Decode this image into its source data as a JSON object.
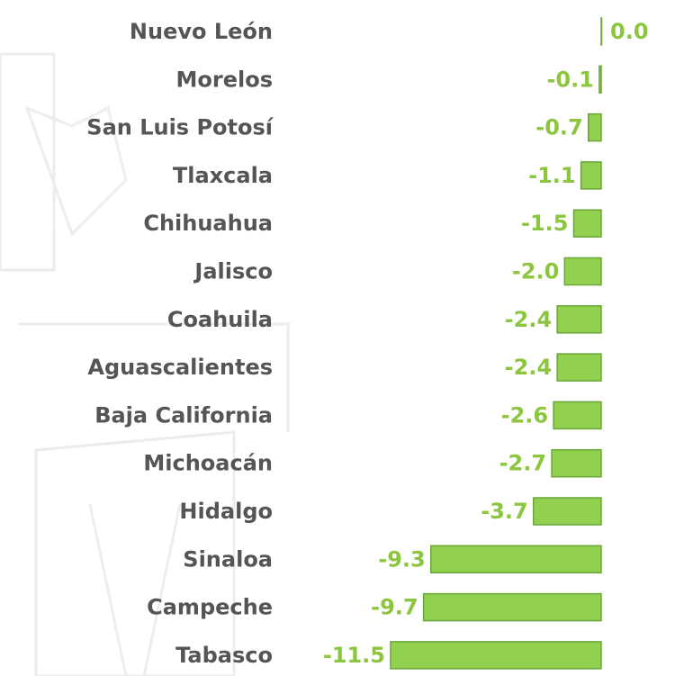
{
  "chart_data": {
    "type": "bar",
    "orientation": "horizontal",
    "categories": [
      "Nuevo León",
      "Morelos",
      "San Luis Potosí",
      "Tlaxcala",
      "Chihuahua",
      "Jalisco",
      "Coahuila",
      "Aguascalientes",
      "Baja California",
      "Michoacán",
      "Hidalgo",
      "Sinaloa",
      "Campeche",
      "Tabasco"
    ],
    "values": [
      0.0,
      -0.1,
      -0.7,
      -1.1,
      -1.5,
      -2.0,
      -2.4,
      -2.4,
      -2.6,
      -2.7,
      -3.7,
      -9.3,
      -9.7,
      -11.5
    ],
    "value_labels": [
      "0.0",
      "-0.1",
      "-0.7",
      "-1.1",
      "-1.5",
      "-2.0",
      "-2.4",
      "-2.4",
      "-2.6",
      "-2.7",
      "-3.7",
      "-9.3",
      "-9.7",
      "-11.5"
    ],
    "color": "#92d050"
  }
}
